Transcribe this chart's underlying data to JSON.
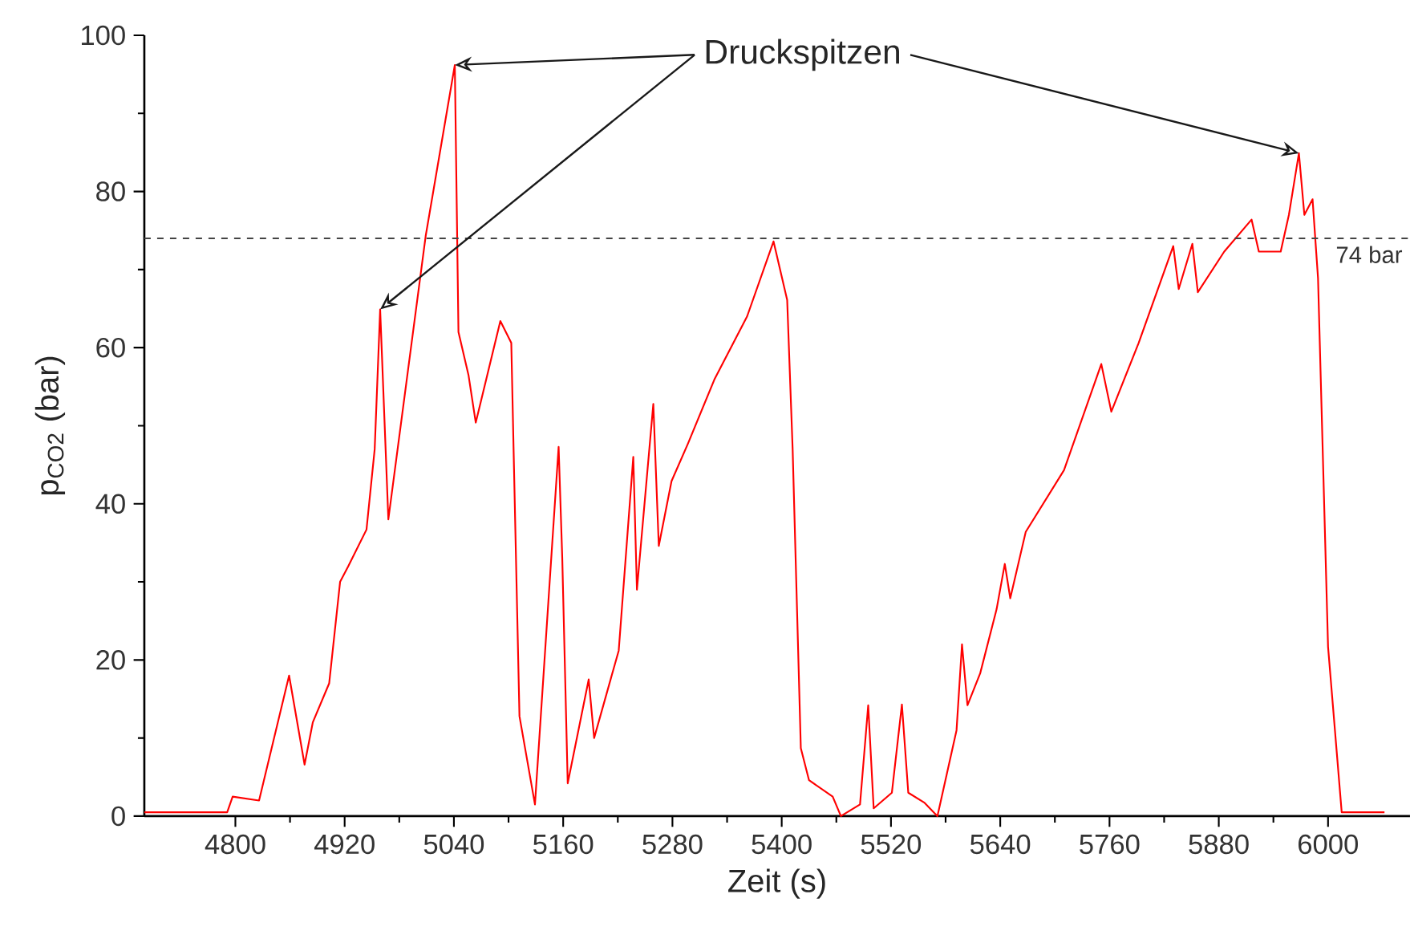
{
  "chart_data": {
    "type": "line",
    "xlabel": "Zeit (s)",
    "ylabel": "p$_{CO2}$ (bar)",
    "annotations": [
      {
        "text": "Druckspitzen",
        "x": 5041,
        "y": 96.2
      }
    ],
    "xlim": [
      4700,
      6090
    ],
    "xticks": [
      4800,
      4920,
      5040,
      5160,
      5280,
      5400,
      5520,
      5640,
      5760,
      5880,
      6000
    ],
    "ylim": [
      0,
      100
    ],
    "yticks": [
      0,
      20,
      40,
      60,
      80,
      100
    ],
    "ref_lines": [
      {
        "axis": "y",
        "value": 74,
        "label": "74 bar",
        "color": "#444444",
        "line_style": "dashed"
      }
    ],
    "grid": false,
    "marker": "none",
    "line_style": "solid",
    "series": [
      {
        "color": "#ff0000",
        "x": [
          4700,
          4791,
          4797,
          4826,
          4859,
          4876,
          4885,
          4903,
          4915,
          4924,
          4944,
          4953,
          4959,
          4968,
          5009,
          5041,
          5045,
          5056,
          5064,
          5091,
          5103,
          5106,
          5112,
          5129,
          5155,
          5159,
          5165,
          5188,
          5194,
          5221,
          5237,
          5241,
          5259,
          5265,
          5279,
          5297,
          5326,
          5362,
          5391,
          5406,
          5412,
          5421,
          5430,
          5456,
          5465,
          5486,
          5495,
          5501,
          5521,
          5532,
          5539,
          5557,
          5571,
          5592,
          5598,
          5604,
          5618,
          5636,
          5645,
          5651,
          5668,
          5710,
          5751,
          5762,
          5792,
          5830,
          5836,
          5851,
          5857,
          5886,
          5916,
          5924,
          5948,
          5957,
          5968,
          5974,
          5983,
          5989,
          6000,
          6015,
          6062
        ],
        "values": [
          0.5,
          0.5,
          2.5,
          2,
          18,
          6.6,
          12,
          17,
          30,
          32,
          36.7,
          47,
          64.9,
          38,
          74.3,
          96.2,
          62,
          56.5,
          50.4,
          63.4,
          60.6,
          44.5,
          12.8,
          1.5,
          47.3,
          33,
          4.2,
          17.5,
          10,
          21.2,
          46,
          29,
          52.8,
          34.6,
          42.9,
          47.7,
          55.9,
          64,
          73.6,
          66.1,
          47,
          8.7,
          4.6,
          2.5,
          0,
          1.5,
          14.2,
          1,
          3,
          14.3,
          3,
          1.7,
          0,
          11,
          22,
          14.2,
          18.3,
          26.5,
          32.3,
          27.9,
          36.4,
          44.3,
          57.9,
          51.8,
          60.6,
          73,
          67.5,
          73.3,
          67.1,
          72.3,
          76.4,
          72.3,
          72.3,
          77,
          84.9,
          77,
          79,
          68.9,
          21.7,
          0.5,
          0.5
        ]
      }
    ]
  }
}
